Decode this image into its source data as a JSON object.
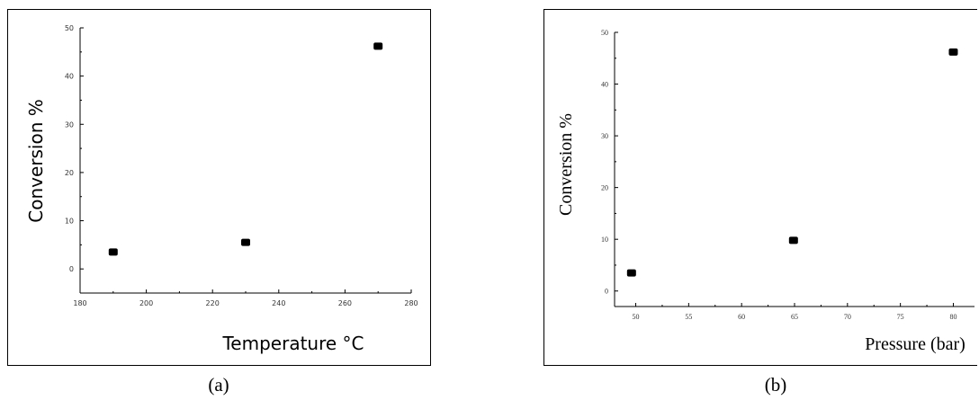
{
  "chart_data": [
    {
      "type": "scatter",
      "panel_label": "(a)",
      "xlabel": "Temperature °C",
      "ylabel": "Conversion %",
      "xlim": [
        180,
        280
      ],
      "ylim": [
        -5,
        50
      ],
      "xticks": [
        180,
        200,
        220,
        240,
        260,
        280
      ],
      "yticks": [
        0,
        10,
        20,
        30,
        40,
        50
      ],
      "grid": false,
      "marker_color": "#000000",
      "points": [
        {
          "x": 190,
          "y": 3.5
        },
        {
          "x": 230,
          "y": 5.5
        },
        {
          "x": 270,
          "y": 46.2
        }
      ]
    },
    {
      "type": "scatter",
      "panel_label": "(b)",
      "xlabel": "Pressure (bar)",
      "ylabel": "Conversion %",
      "xlim": [
        48,
        82
      ],
      "ylim": [
        -3,
        50
      ],
      "xticks": [
        50,
        55,
        60,
        65,
        70,
        75,
        80
      ],
      "yticks": [
        0,
        10,
        20,
        30,
        40,
        50
      ],
      "grid": false,
      "marker_color": "#000000",
      "points": [
        {
          "x": 49.6,
          "y": 3.5
        },
        {
          "x": 64.9,
          "y": 9.8
        },
        {
          "x": 80,
          "y": 46.2
        }
      ]
    }
  ]
}
